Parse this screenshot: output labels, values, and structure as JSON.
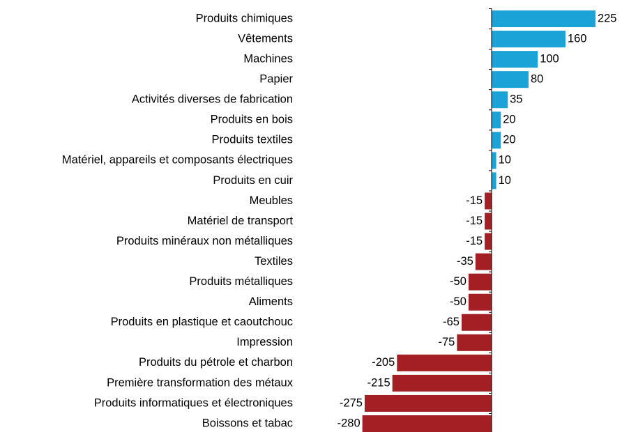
{
  "chart_data": {
    "type": "hbar",
    "categories": [
      "Produits chimiques",
      "Vêtements",
      "Machines",
      "Papier",
      "Activités diverses de fabrication",
      "Produits en bois",
      "Produits textiles",
      "Matériel, appareils et composants électriques",
      "Produits en cuir",
      "Meubles",
      "Matériel de transport",
      "Produits minéraux non métalliques",
      "Textiles",
      "Produits métalliques",
      "Aliments",
      "Produits en plastique et caoutchouc",
      "Impression",
      "Produits du pétrole et charbon",
      "Première transformation des métaux",
      "Produits informatiques et électroniques",
      "Boissons et tabac"
    ],
    "values": [
      225,
      160,
      100,
      80,
      35,
      20,
      20,
      10,
      10,
      -15,
      -15,
      -15,
      -35,
      -50,
      -50,
      -65,
      -75,
      -205,
      -215,
      -275,
      -280
    ],
    "positive_color": "#1ba3d8",
    "negative_color": "#a31f24"
  }
}
